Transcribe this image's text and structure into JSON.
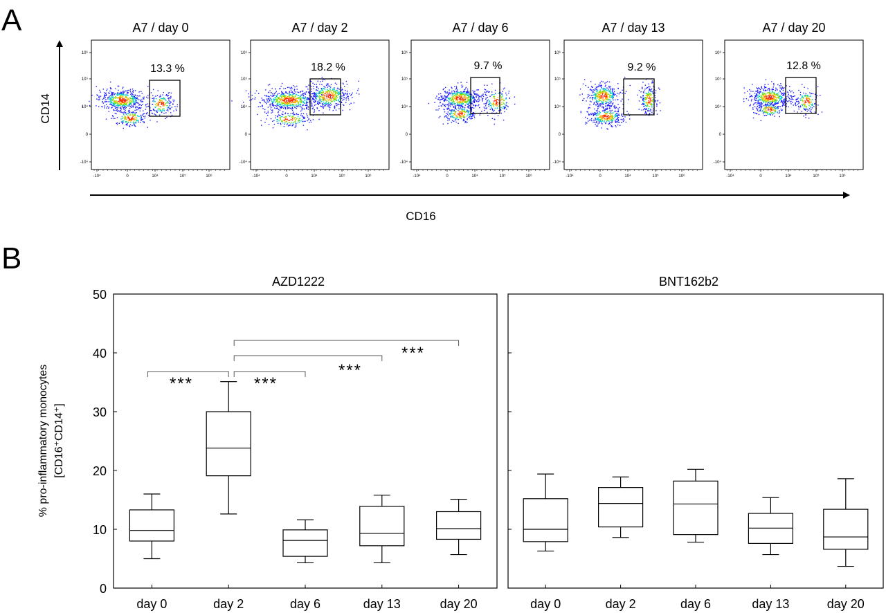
{
  "panel_a": {
    "letter": "A",
    "flow_plots": [
      {
        "title": "A7 / day 0",
        "gate_pct": "13.3 %"
      },
      {
        "title": "A7 / day 2",
        "gate_pct": "18.2 %"
      },
      {
        "title": "A7 / day 6",
        "gate_pct": "9.7 %"
      },
      {
        "title": "A7 / day 13",
        "gate_pct": "9.2 %"
      },
      {
        "title": "A7 / day 20",
        "gate_pct": "12.8 %"
      }
    ],
    "y_ticks": [
      "10⁶",
      "10⁵",
      "10⁴",
      "0",
      "-10⁴"
    ],
    "x_ticks": [
      "-10⁴",
      "0",
      "10⁴",
      "10⁵",
      "10⁶"
    ],
    "y_axis_label": "CD14",
    "x_axis_label": "CD16"
  },
  "panel_b": {
    "letter": "B",
    "significance_label": "***"
  },
  "chart_data": [
    {
      "type": "box",
      "title": "AZD1222",
      "categories": [
        "day 0",
        "day 2",
        "day 6",
        "day 13",
        "day 20"
      ],
      "ylabel": "% pro-inflammatory monocytes [CD16⁺CD14⁺]",
      "ylabel_line1": "% pro-inflammatory monocytes",
      "ylabel_line2": "[CD16⁺CD14⁺]",
      "ylim": [
        0,
        50
      ],
      "yticks": [
        0,
        10,
        20,
        30,
        40,
        50
      ],
      "boxes": [
        {
          "min": 5.0,
          "q1": 8.0,
          "median": 9.8,
          "q3": 13.3,
          "max": 16.0
        },
        {
          "min": 12.6,
          "q1": 19.1,
          "median": 23.8,
          "q3": 30.0,
          "max": 35.1
        },
        {
          "min": 4.3,
          "q1": 5.4,
          "median": 8.1,
          "q3": 9.9,
          "max": 11.6
        },
        {
          "min": 4.3,
          "q1": 7.2,
          "median": 9.3,
          "q3": 13.9,
          "max": 15.8
        },
        {
          "min": 5.7,
          "q1": 8.3,
          "median": 10.1,
          "q3": 13.0,
          "max": 15.1
        }
      ],
      "significance": [
        {
          "from": "day 0",
          "to": "day 2",
          "label": "***"
        },
        {
          "from": "day 2",
          "to": "day 6",
          "label": "***"
        },
        {
          "from": "day 2",
          "to": "day 13",
          "label": "***"
        },
        {
          "from": "day 2",
          "to": "day 20",
          "label": "***"
        }
      ]
    },
    {
      "type": "box",
      "title": "BNT162b2",
      "categories": [
        "day 0",
        "day 2",
        "day 6",
        "day 13",
        "day 20"
      ],
      "ylim": [
        0,
        50
      ],
      "boxes": [
        {
          "min": 6.3,
          "q1": 7.9,
          "median": 10.0,
          "q3": 15.2,
          "max": 19.4
        },
        {
          "min": 8.6,
          "q1": 10.4,
          "median": 14.4,
          "q3": 17.1,
          "max": 18.9
        },
        {
          "min": 7.8,
          "q1": 9.1,
          "median": 14.3,
          "q3": 18.2,
          "max": 20.2
        },
        {
          "min": 5.7,
          "q1": 7.6,
          "median": 10.2,
          "q3": 12.7,
          "max": 15.4
        },
        {
          "min": 3.7,
          "q1": 6.6,
          "median": 8.7,
          "q3": 13.4,
          "max": 18.6
        }
      ]
    }
  ]
}
